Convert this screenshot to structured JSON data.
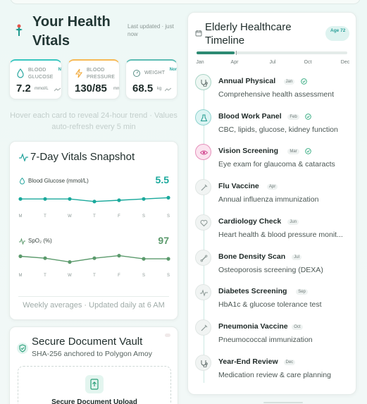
{
  "header": {
    "title": "Your Health Vitals",
    "updated": "Last updated · just now"
  },
  "vitals": [
    {
      "label": "BLOOD GLUCOSE",
      "value": "7.2",
      "unit": "mmol/L",
      "tag": "N",
      "accent": "#39c7c0",
      "icon": "droplet-icon"
    },
    {
      "label": "BLOOD PRESSURE",
      "value": "130/85",
      "unit": "mm",
      "tag": "",
      "accent": "#f7b955",
      "icon": "lightning-icon"
    },
    {
      "label": "WEIGHT",
      "value": "68.5",
      "unit": "kg",
      "tag": "Nor",
      "accent": "#5dbdb4",
      "icon": "scale-icon"
    }
  ],
  "hover_note": "Hover each card to reveal 24-hour trend · Values auto-refresh every 5 min",
  "snapshot": {
    "title": "7-Day Vitals Snapshot",
    "footer": "Weekly averages · Updated daily at 6 AM",
    "metrics": [
      {
        "label": "Blood Glucose (mmol/L)",
        "value": "5.5",
        "color": "#1aa99c",
        "days": [
          "M",
          "T",
          "W",
          "T",
          "F",
          "S",
          "S"
        ],
        "points": [
          5.5,
          5.5,
          5.5,
          5.4,
          5.45,
          5.5,
          5.55
        ]
      },
      {
        "label": "SpO₂ (%)",
        "value": "97",
        "color": "#5b9a6c",
        "days": [
          "M",
          "T",
          "W",
          "T",
          "F",
          "S",
          "S"
        ],
        "points": [
          97.5,
          97.2,
          96.6,
          97.2,
          97.6,
          97.1,
          97.1
        ]
      }
    ]
  },
  "vault": {
    "title": "Secure Document Vault",
    "subtitle": "SHA-256 anchored to Polygon Amoy",
    "upload_label": "Secure Document Upload"
  },
  "timeline": {
    "title": "Elderly Healthcare Timeline",
    "age": "Age 72",
    "progress_fraction": 0.25,
    "months": [
      "Jan",
      "Apr",
      "Jul",
      "Oct",
      "Dec"
    ],
    "events": [
      {
        "name": "Annual Physical",
        "month": "Jan",
        "done": true,
        "description": "Comprehensive health assessment",
        "icon": "stethoscope-icon",
        "style": "done"
      },
      {
        "name": "Blood Work Panel",
        "month": "Feb",
        "done": true,
        "description": "CBC, lipids, glucose, kidney function",
        "icon": "flask-icon",
        "style": "blood"
      },
      {
        "name": "Vision Screening",
        "month": "Mar",
        "done": true,
        "description": "Eye exam for glaucoma & cataracts",
        "icon": "eye-icon",
        "style": "vision"
      },
      {
        "name": "Flu Vaccine",
        "month": "Apr",
        "done": false,
        "description": "Annual influenza immunization",
        "icon": "syringe-icon",
        "style": ""
      },
      {
        "name": "Cardiology Check",
        "month": "Jun",
        "done": false,
        "description": "Heart health & blood pressure monit...",
        "icon": "heart-icon",
        "style": ""
      },
      {
        "name": "Bone Density Scan",
        "month": "Jul",
        "done": false,
        "description": "Osteoporosis screening (DEXA)",
        "icon": "bone-icon",
        "style": ""
      },
      {
        "name": "Diabetes Screening",
        "month": "Sep",
        "done": false,
        "description": "HbA1c & glucose tolerance test",
        "icon": "pulse-icon",
        "style": ""
      },
      {
        "name": "Pneumonia Vaccine",
        "month": "Oct",
        "done": false,
        "description": "Pneumococcal immunization",
        "icon": "syringe-icon",
        "style": ""
      },
      {
        "name": "Year-End Review",
        "month": "Dec",
        "done": false,
        "description": "Medication review & care planning",
        "icon": "stethoscope-icon",
        "style": ""
      }
    ]
  }
}
